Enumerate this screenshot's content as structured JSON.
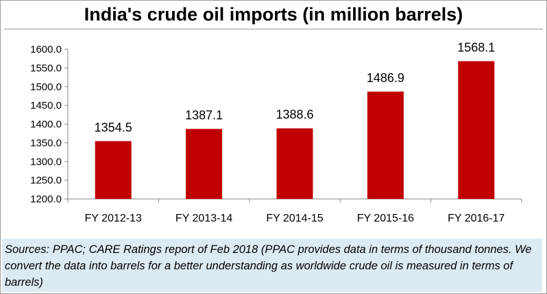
{
  "chart_data": {
    "type": "bar",
    "title": "India's crude oil imports (in million barrels)",
    "categories": [
      "FY 2012-13",
      "FY 2013-14",
      "FY 2014-15",
      "FY 2015-16",
      "FY 2016-17"
    ],
    "values": [
      1354.5,
      1387.1,
      1388.6,
      1486.9,
      1568.1
    ],
    "value_labels": [
      "1354.5",
      "1387.1",
      "1388.6",
      "1486.9",
      "1568.1"
    ],
    "ylim": [
      1200,
      1600
    ],
    "yticks": [
      "1200.0",
      "1250.0",
      "1300.0",
      "1350.0",
      "1400.0",
      "1450.0",
      "1500.0",
      "1550.0",
      "1600.0"
    ],
    "xlabel": "",
    "ylabel": "",
    "grid": false,
    "legend": "none",
    "bar_color": "#c00000"
  },
  "source_note": "Sources: PPAC; CARE Ratings report of Feb 2018 (PPAC provides data in terms of thousand tonnes. We convert the data into barrels for a better understanding as worldwide crude oil is measured in terms of barrels)"
}
